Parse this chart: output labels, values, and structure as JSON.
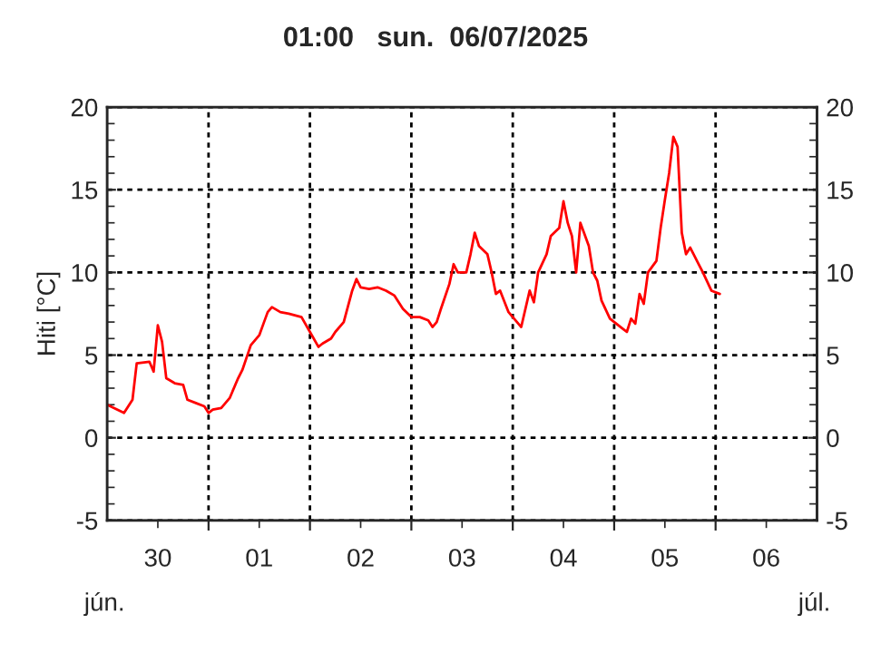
{
  "chart_data": {
    "type": "line",
    "title": "01:00   sun.  06/07/2025",
    "ylabel": "Hiti [°C]",
    "annotations": [
      "jún.",
      "júl."
    ],
    "series": [
      {
        "color": "#ff0000",
        "x": [
          "2025-06-30T00:00",
          "2025-06-30T04:00",
          "2025-06-30T06:00",
          "2025-06-30T07:00",
          "2025-06-30T10:00",
          "2025-06-30T11:00",
          "2025-06-30T12:00",
          "2025-06-30T13:00",
          "2025-06-30T14:00",
          "2025-06-30T16:00",
          "2025-06-30T18:00",
          "2025-06-30T19:00",
          "2025-06-30T21:00",
          "2025-06-30T23:00",
          "2025-07-01T00:00",
          "2025-07-01T01:00",
          "2025-07-01T03:00",
          "2025-07-01T04:00",
          "2025-07-01T05:00",
          "2025-07-01T07:00",
          "2025-07-01T08:00",
          "2025-07-01T10:00",
          "2025-07-01T12:00",
          "2025-07-01T13:00",
          "2025-07-01T14:00",
          "2025-07-01T15:00",
          "2025-07-01T17:00",
          "2025-07-01T19:00",
          "2025-07-01T22:00",
          "2025-07-02T00:00",
          "2025-07-02T02:00",
          "2025-07-02T03:00",
          "2025-07-02T05:00",
          "2025-07-02T06:00",
          "2025-07-02T08:00",
          "2025-07-02T10:00",
          "2025-07-02T11:00",
          "2025-07-02T12:00",
          "2025-07-02T14:00",
          "2025-07-02T16:00",
          "2025-07-02T18:00",
          "2025-07-02T20:00",
          "2025-07-02T22:00",
          "2025-07-03T00:00",
          "2025-07-03T02:00",
          "2025-07-03T04:00",
          "2025-07-03T05:00",
          "2025-07-03T06:00",
          "2025-07-03T07:00",
          "2025-07-03T09:00",
          "2025-07-03T10:00",
          "2025-07-03T11:00",
          "2025-07-03T13:00",
          "2025-07-03T14:00",
          "2025-07-03T15:00",
          "2025-07-03T16:00",
          "2025-07-03T18:00",
          "2025-07-03T19:00",
          "2025-07-03T20:00",
          "2025-07-03T21:00",
          "2025-07-03T23:00",
          "2025-07-04T01:00",
          "2025-07-04T02:00",
          "2025-07-04T04:00",
          "2025-07-04T05:00",
          "2025-07-04T06:00",
          "2025-07-04T08:00",
          "2025-07-04T09:00",
          "2025-07-04T11:00",
          "2025-07-04T12:00",
          "2025-07-04T13:00",
          "2025-07-04T14:00",
          "2025-07-04T15:00",
          "2025-07-04T16:00",
          "2025-07-04T18:00",
          "2025-07-04T19:00",
          "2025-07-04T20:00",
          "2025-07-04T21:00",
          "2025-07-04T23:00",
          "2025-07-05T02:00",
          "2025-07-05T03:00",
          "2025-07-05T04:00",
          "2025-07-05T05:00",
          "2025-07-05T06:00",
          "2025-07-05T07:00",
          "2025-07-05T08:00",
          "2025-07-05T10:00",
          "2025-07-05T11:00",
          "2025-07-05T12:00",
          "2025-07-05T13:00",
          "2025-07-05T14:00",
          "2025-07-05T15:00",
          "2025-07-05T16:00",
          "2025-07-05T17:00",
          "2025-07-05T18:00",
          "2025-07-05T20:00",
          "2025-07-05T21:00",
          "2025-07-05T23:00",
          "2025-07-06T01:00"
        ],
        "values": [
          2.0,
          1.5,
          2.3,
          4.5,
          4.6,
          4.0,
          6.8,
          5.8,
          3.6,
          3.3,
          3.2,
          2.3,
          2.1,
          1.9,
          1.5,
          1.7,
          1.8,
          2.1,
          2.4,
          3.6,
          4.1,
          5.6,
          6.2,
          6.9,
          7.6,
          7.9,
          7.6,
          7.5,
          7.3,
          6.4,
          5.5,
          5.7,
          6.0,
          6.4,
          7.0,
          8.9,
          9.6,
          9.1,
          9.0,
          9.1,
          8.9,
          8.6,
          7.8,
          7.3,
          7.3,
          7.1,
          6.7,
          7.0,
          7.8,
          9.3,
          10.5,
          10.0,
          10.0,
          11.1,
          12.4,
          11.6,
          11.1,
          10.0,
          8.7,
          8.9,
          7.6,
          7.0,
          6.7,
          8.9,
          8.2,
          10.0,
          11.1,
          12.2,
          12.7,
          14.3,
          13.0,
          12.2,
          10.0,
          13.0,
          11.6,
          10.0,
          9.5,
          8.3,
          7.2,
          6.6,
          6.4,
          7.2,
          6.9,
          8.7,
          8.1,
          10.0,
          10.7,
          12.7,
          14.4,
          16.0,
          18.2,
          17.6,
          12.4,
          11.1,
          11.5,
          10.5,
          10.0,
          8.9,
          8.7
        ]
      }
    ],
    "xlim": [
      "2025-06-30T00:00",
      "2025-07-07T00:00"
    ],
    "xticks": [
      {
        "value": "2025-06-30T12:00",
        "label": "30"
      },
      {
        "value": "2025-07-01T00:00",
        "label": null
      },
      {
        "value": "2025-07-01T12:00",
        "label": "01"
      },
      {
        "value": "2025-07-02T00:00",
        "label": null
      },
      {
        "value": "2025-07-02T12:00",
        "label": "02"
      },
      {
        "value": "2025-07-03T00:00",
        "label": null
      },
      {
        "value": "2025-07-03T12:00",
        "label": "03"
      },
      {
        "value": "2025-07-04T00:00",
        "label": null
      },
      {
        "value": "2025-07-04T12:00",
        "label": "04"
      },
      {
        "value": "2025-07-05T00:00",
        "label": null
      },
      {
        "value": "2025-07-05T12:00",
        "label": "05"
      },
      {
        "value": "2025-07-06T00:00",
        "label": null
      },
      {
        "value": "2025-07-06T12:00",
        "label": "06"
      }
    ],
    "ylim": [
      -5,
      20
    ],
    "yticks": [
      -5,
      0,
      5,
      10,
      15,
      20
    ],
    "y2lim": [
      -5,
      20
    ],
    "y2ticks": [
      -5,
      0,
      5,
      10,
      15,
      20
    ],
    "grid": true,
    "marker": "none",
    "line_style": "solid",
    "legend": false
  }
}
